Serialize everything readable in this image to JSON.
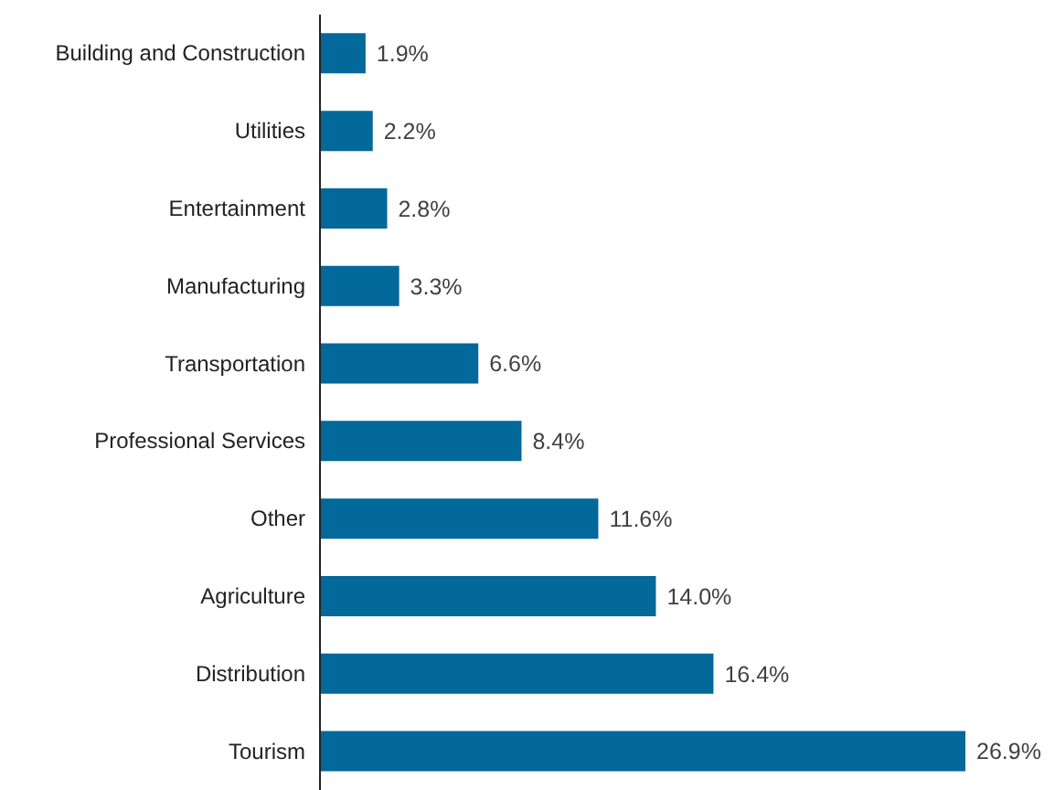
{
  "chart_data": {
    "type": "bar",
    "orientation": "horizontal",
    "categories": [
      "Building and Construction",
      "Utilities",
      "Entertainment",
      "Manufacturing",
      "Transportation",
      "Professional Services",
      "Other",
      "Agriculture",
      "Distribution",
      "Tourism"
    ],
    "values": [
      1.9,
      2.2,
      2.8,
      3.3,
      6.6,
      8.4,
      11.6,
      14.0,
      16.4,
      26.9
    ],
    "value_labels": [
      "1.9%",
      "2.2%",
      "2.8%",
      "3.3%",
      "6.6%",
      "8.4%",
      "11.6%",
      "14.0%",
      "16.4%",
      "26.9%"
    ],
    "color": "#03689a",
    "tick_labels": "y",
    "grid": false
  }
}
